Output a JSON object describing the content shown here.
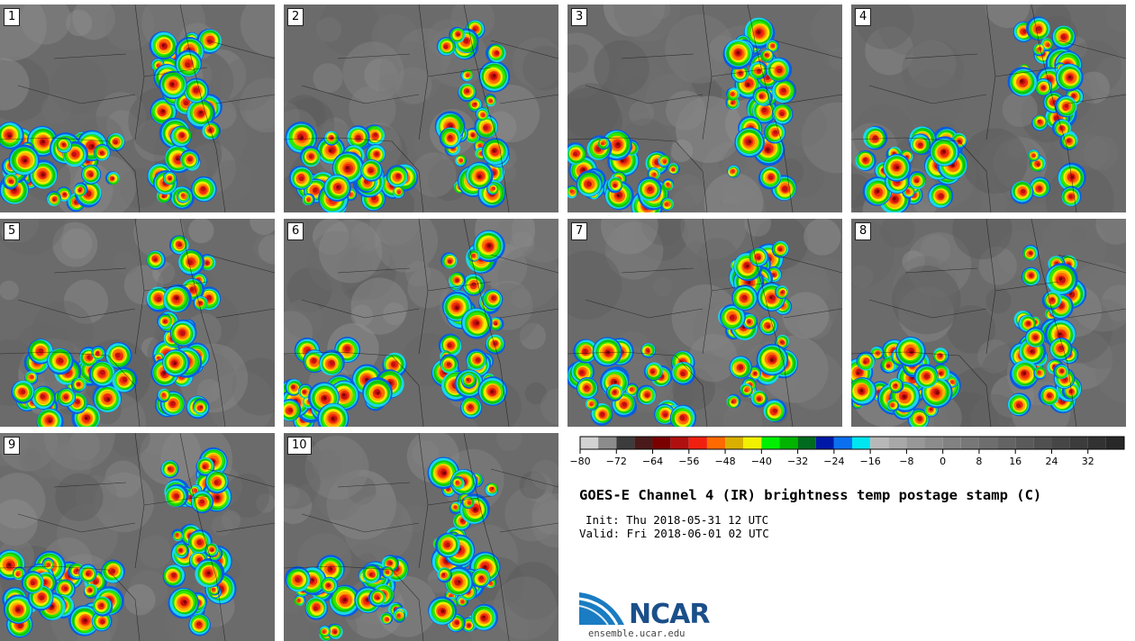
{
  "panels": [
    {
      "id": "1"
    },
    {
      "id": "2"
    },
    {
      "id": "3"
    },
    {
      "id": "4"
    },
    {
      "id": "5"
    },
    {
      "id": "6"
    },
    {
      "id": "7"
    },
    {
      "id": "8"
    },
    {
      "id": "9"
    },
    {
      "id": "10"
    }
  ],
  "colorbar": {
    "colors": [
      "#d3d3d3",
      "#8c8c8c",
      "#3c3c3c",
      "#4a1a1a",
      "#7a0000",
      "#b01010",
      "#f02010",
      "#ff6a00",
      "#d9b000",
      "#f0f000",
      "#00f000",
      "#00b400",
      "#006b1e",
      "#0018a8",
      "#0a70f0",
      "#00e6f0",
      "#b8b8b8",
      "#a8a8a8",
      "#989898",
      "#8c8c8c",
      "#828282",
      "#787878",
      "#6e6e6e",
      "#646464",
      "#5a5a5a",
      "#505050",
      "#464646",
      "#3c3c3c",
      "#323232",
      "#282828"
    ],
    "ticks": [
      "−80",
      "−72",
      "−64",
      "−56",
      "−48",
      "−40",
      "−32",
      "−24",
      "−16",
      "−8",
      "0",
      "8",
      "16",
      "24",
      "32"
    ]
  },
  "title": "GOES-E Channel 4 (IR) brightness temp postage stamp (C)",
  "init": "Init: Thu 2018-05-31 12 UTC",
  "valid": "Valid: Fri 2018-06-01 02 UTC",
  "logo": {
    "name": "NCAR",
    "site": "ensemble.ucar.edu"
  }
}
